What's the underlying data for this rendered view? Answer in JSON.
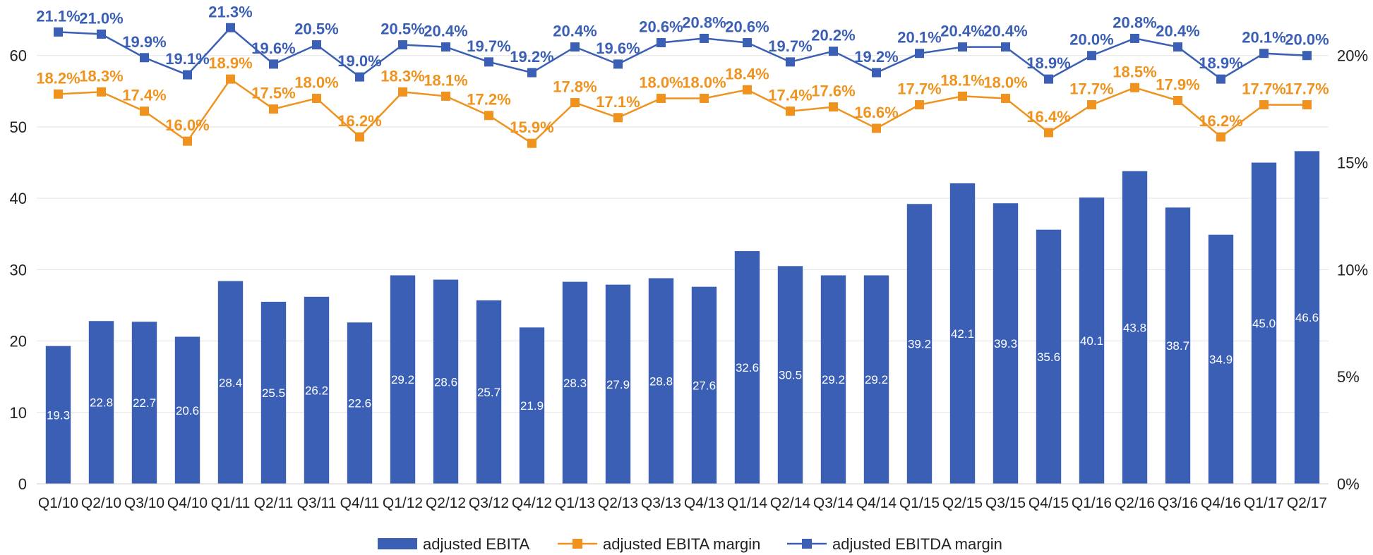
{
  "chart_data": {
    "type": "bar",
    "categories": [
      "Q1/10",
      "Q2/10",
      "Q3/10",
      "Q4/10",
      "Q1/11",
      "Q2/11",
      "Q3/11",
      "Q4/11",
      "Q1/12",
      "Q2/12",
      "Q3/12",
      "Q4/12",
      "Q1/13",
      "Q2/13",
      "Q3/13",
      "Q4/13",
      "Q1/14",
      "Q2/14",
      "Q3/14",
      "Q4/14",
      "Q1/15",
      "Q2/15",
      "Q3/15",
      "Q4/15",
      "Q1/16",
      "Q2/16",
      "Q3/16",
      "Q4/16",
      "Q1/17",
      "Q2/17"
    ],
    "series": [
      {
        "name": "adjusted EBITA",
        "kind": "bar",
        "axis": "left",
        "color": "#3a5fb5",
        "values": [
          19.3,
          22.8,
          22.7,
          20.6,
          28.4,
          25.5,
          26.2,
          22.6,
          29.2,
          28.6,
          25.7,
          21.9,
          28.3,
          27.9,
          28.8,
          27.6,
          32.6,
          30.5,
          29.2,
          29.2,
          39.2,
          42.1,
          39.3,
          35.6,
          40.1,
          43.8,
          38.7,
          34.9,
          45.0,
          46.6
        ],
        "labels": [
          "19.3",
          "22.8",
          "22.7",
          "20.6",
          "28.4",
          "25.5",
          "26.2",
          "22.6",
          "29.2",
          "28.6",
          "25.7",
          "21.9",
          "28.3",
          "27.9",
          "28.8",
          "27.6",
          "32.6",
          "30.5",
          "29.2",
          "29.2",
          "39.2",
          "42.1",
          "39.3",
          "35.6",
          "40.1",
          "43.8",
          "38.7",
          "34.9",
          "45.0",
          "46.6"
        ]
      },
      {
        "name": "adjusted EBITA margin",
        "kind": "line",
        "axis": "right",
        "color": "#f0921e",
        "values": [
          18.2,
          18.3,
          17.4,
          16.0,
          18.9,
          17.5,
          18.0,
          16.2,
          18.3,
          18.1,
          17.2,
          15.9,
          17.8,
          17.1,
          18.0,
          18.0,
          18.4,
          17.4,
          17.6,
          16.6,
          17.7,
          18.1,
          18.0,
          16.4,
          17.7,
          18.5,
          17.9,
          16.2,
          17.7,
          17.7
        ],
        "labels": [
          "18.2%",
          "18.3%",
          "17.4%",
          "16.0%",
          "18.9%",
          "17.5%",
          "18.0%",
          "16.2%",
          "18.3%",
          "18.1%",
          "17.2%",
          "15.9%",
          "17.8%",
          "17.1%",
          "18.0%",
          "18.0%",
          "18.4%",
          "17.4%",
          "17.6%",
          "16.6%",
          "17.7%",
          "18.1%",
          "18.0%",
          "16.4%",
          "17.7%",
          "18.5%",
          "17.9%",
          "16.2%",
          "17.7%",
          "17.7%"
        ]
      },
      {
        "name": "adjusted EBITDA margin",
        "kind": "line",
        "axis": "right",
        "color": "#3a5fb5",
        "values": [
          21.1,
          21.0,
          19.9,
          19.1,
          21.3,
          19.6,
          20.5,
          19.0,
          20.5,
          20.4,
          19.7,
          19.2,
          20.4,
          19.6,
          20.6,
          20.8,
          20.6,
          19.7,
          20.2,
          19.2,
          20.1,
          20.4,
          20.4,
          18.9,
          20.0,
          20.8,
          20.4,
          18.9,
          20.1,
          20.0
        ],
        "labels": [
          "21.1%",
          "21.0%",
          "19.9%",
          "19.1%",
          "21.3%",
          "19.6%",
          "20.5%",
          "19.0%",
          "20.5%",
          "20.4%",
          "19.7%",
          "19.2%",
          "20.4%",
          "19.6%",
          "20.6%",
          "20.8%",
          "20.6%",
          "19.7%",
          "20.2%",
          "19.2%",
          "20.1%",
          "20.4%",
          "20.4%",
          "18.9%",
          "20.0%",
          "20.8%",
          "20.4%",
          "18.9%",
          "20.1%",
          "20.0%"
        ]
      }
    ],
    "left_axis": {
      "ylim": [
        0,
        66
      ],
      "ticks": [
        0,
        10,
        20,
        30,
        40,
        50,
        60
      ],
      "tick_labels": [
        "0",
        "10",
        "20",
        "30",
        "40",
        "50",
        "60"
      ]
    },
    "right_axis": {
      "ylim": [
        0,
        22
      ],
      "ticks": [
        0,
        5,
        10,
        15,
        20
      ],
      "tick_labels": [
        "0%",
        "5%",
        "10%",
        "15%",
        "20%"
      ]
    },
    "grid": true,
    "legend": {
      "position": "bottom",
      "items": [
        "adjusted EBITA",
        "adjusted EBITA margin",
        "adjusted EBITDA margin"
      ]
    }
  }
}
